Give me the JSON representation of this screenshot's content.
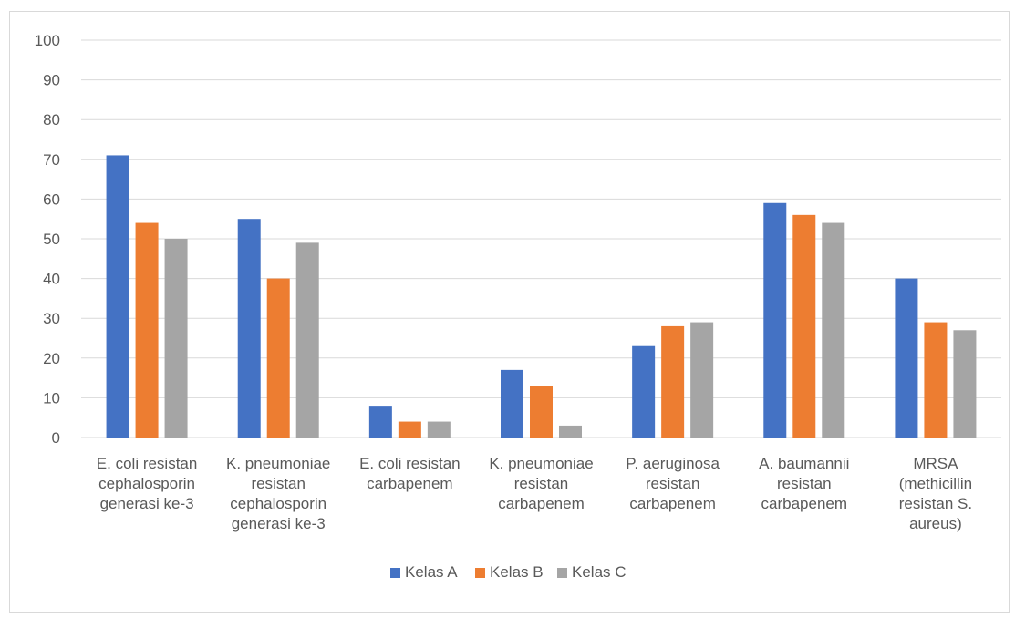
{
  "chart_data": {
    "type": "bar",
    "categories": [
      [
        "E. coli resistan",
        "cephalosporin",
        "generasi ke-3"
      ],
      [
        "K. pneumoniae",
        "resistan",
        "cephalosporin",
        "generasi ke-3"
      ],
      [
        "E. coli resistan",
        "carbapenem"
      ],
      [
        "K. pneumoniae",
        "resistan",
        "carbapenem"
      ],
      [
        "P. aeruginosa",
        "resistan",
        "carbapenem"
      ],
      [
        "A. baumannii",
        "resistan",
        "carbapenem"
      ],
      [
        "MRSA",
        "(methicillin",
        "resistan S.",
        "aureus)"
      ]
    ],
    "series": [
      {
        "name": "Kelas A",
        "color": "#4472c4",
        "values": [
          71,
          55,
          8,
          17,
          23,
          59,
          40
        ]
      },
      {
        "name": "Kelas B",
        "color": "#ed7d31",
        "values": [
          54,
          40,
          4,
          13,
          28,
          56,
          29
        ]
      },
      {
        "name": "Kelas C",
        "color": "#a5a5a5",
        "values": [
          50,
          49,
          4,
          3,
          29,
          54,
          27
        ]
      }
    ],
    "ylim": [
      0,
      100
    ],
    "yticks": [
      "0",
      "10",
      "20",
      "30",
      "40",
      "50",
      "60",
      "70",
      "80",
      "90",
      "100"
    ],
    "grid": true,
    "gridline_color": "#d9d9d9",
    "legend": "bottom",
    "title": "",
    "xlabel": "",
    "ylabel": ""
  }
}
